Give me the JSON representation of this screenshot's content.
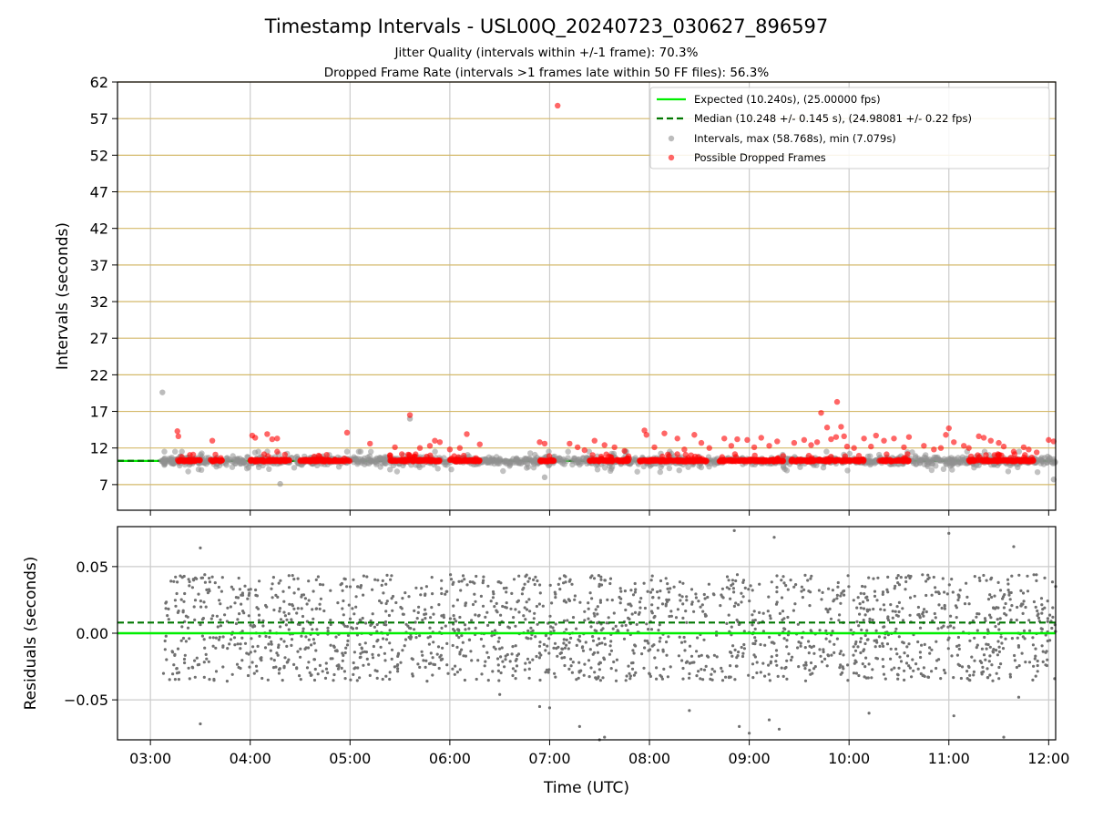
{
  "figure": {
    "title": "Timestamp Intervals - USL00Q_20240723_030627_896597",
    "subtitle_1": "Jitter Quality (intervals within +/-1 frame): 70.3%",
    "subtitle_2": "Dropped Frame Rate (intervals >1 frames late within 50 FF files): 56.3%"
  },
  "colors": {
    "expected": "#00ee00",
    "median": "#007700",
    "intervals": "#909090",
    "dropped": "#ff0000",
    "residuals": "#707070",
    "hgrid_top": "#d4b96a",
    "grid": "#cccccc"
  },
  "chart_data": [
    {
      "type": "scatter",
      "name": "intervals_panel",
      "ylabel": "Intervals (seconds)",
      "xlabel": "",
      "x_unit": "hours UTC",
      "xlim": [
        2.67,
        12.07
      ],
      "ylim": [
        3.5,
        62
      ],
      "yticks": [
        7,
        12,
        17,
        22,
        27,
        32,
        37,
        42,
        47,
        52,
        57,
        62
      ],
      "ytick_labels": [
        "7",
        "12",
        "17",
        "22",
        "27",
        "32",
        "37",
        "42",
        "47",
        "52",
        "57",
        "62"
      ],
      "xticks": [
        3,
        4,
        5,
        6,
        7,
        8,
        9,
        10,
        11,
        12
      ],
      "grid": "horizontal lines at y ticks, vertical lines at x ticks",
      "legend": {
        "placement": "top-right",
        "entries": [
          "Expected (10.240s), (25.00000 fps)",
          "Median (10.248 +/- 0.145 s), (24.98081 +/- 0.22 fps)",
          "Intervals, max (58.768s), min (7.079s)",
          "Possible Dropped Frames"
        ]
      },
      "expected_value": 10.24,
      "median_value": 10.248,
      "series": [
        {
          "name": "Intervals, max (58.768s), min (7.079s)",
          "description": "dense band of ~1900 intervals between about 7 and 12 s, centered on 10.24 s",
          "x_range": [
            3.1,
            12.07
          ],
          "typical_range": [
            8.0,
            11.5
          ],
          "outliers": [
            {
              "x": 3.12,
              "y": 19.6
            },
            {
              "x": 4.3,
              "y": 7.1
            },
            {
              "x": 5.6,
              "y": 16.0
            },
            {
              "x": 6.95,
              "y": 8.0
            },
            {
              "x": 12.05,
              "y": 7.7
            }
          ]
        },
        {
          "name": "Possible Dropped Frames",
          "description": "red points at ~10.28 s forming a near-continuous band, plus scattered values up to ~18 s and one at 58.77 s",
          "base_value": 10.28,
          "dense_ranges": [
            [
              3.27,
              3.5
            ],
            [
              3.6,
              3.72
            ],
            [
              4.0,
              4.4
            ],
            [
              4.5,
              5.0
            ],
            [
              5.4,
              5.9
            ],
            [
              6.0,
              6.3
            ],
            [
              6.9,
              7.05
            ],
            [
              7.4,
              7.8
            ],
            [
              7.9,
              8.6
            ],
            [
              8.7,
              9.35
            ],
            [
              9.42,
              10.15
            ],
            [
              10.3,
              10.6
            ],
            [
              11.2,
              11.85
            ]
          ],
          "high_points": [
            {
              "x": 3.27,
              "y": 14.3
            },
            {
              "x": 3.28,
              "y": 13.6
            },
            {
              "x": 3.62,
              "y": 13.0
            },
            {
              "x": 4.02,
              "y": 13.7
            },
            {
              "x": 4.05,
              "y": 13.4
            },
            {
              "x": 4.17,
              "y": 13.9
            },
            {
              "x": 4.22,
              "y": 13.2
            },
            {
              "x": 4.27,
              "y": 13.3
            },
            {
              "x": 4.27,
              "y": 11.5
            },
            {
              "x": 4.97,
              "y": 14.1
            },
            {
              "x": 5.2,
              "y": 12.6
            },
            {
              "x": 5.45,
              "y": 12.1
            },
            {
              "x": 5.6,
              "y": 16.5
            },
            {
              "x": 5.7,
              "y": 12.0
            },
            {
              "x": 5.8,
              "y": 12.3
            },
            {
              "x": 5.85,
              "y": 13.0
            },
            {
              "x": 5.9,
              "y": 12.8
            },
            {
              "x": 6.0,
              "y": 11.8
            },
            {
              "x": 6.1,
              "y": 12.0
            },
            {
              "x": 6.17,
              "y": 13.9
            },
            {
              "x": 6.3,
              "y": 12.5
            },
            {
              "x": 6.9,
              "y": 12.8
            },
            {
              "x": 6.95,
              "y": 12.6
            },
            {
              "x": 7.08,
              "y": 58.77
            },
            {
              "x": 7.2,
              "y": 12.6
            },
            {
              "x": 7.28,
              "y": 12.1
            },
            {
              "x": 7.35,
              "y": 11.7
            },
            {
              "x": 7.45,
              "y": 13.0
            },
            {
              "x": 7.55,
              "y": 12.4
            },
            {
              "x": 7.65,
              "y": 12.1
            },
            {
              "x": 7.75,
              "y": 11.6
            },
            {
              "x": 7.95,
              "y": 14.4
            },
            {
              "x": 7.97,
              "y": 13.8
            },
            {
              "x": 8.05,
              "y": 12.1
            },
            {
              "x": 8.15,
              "y": 14.0
            },
            {
              "x": 8.28,
              "y": 13.3
            },
            {
              "x": 8.35,
              "y": 11.8
            },
            {
              "x": 8.45,
              "y": 13.8
            },
            {
              "x": 8.52,
              "y": 12.7
            },
            {
              "x": 8.6,
              "y": 12.0
            },
            {
              "x": 8.75,
              "y": 13.3
            },
            {
              "x": 8.82,
              "y": 12.3
            },
            {
              "x": 8.88,
              "y": 13.2
            },
            {
              "x": 8.98,
              "y": 13.1
            },
            {
              "x": 9.05,
              "y": 12.1
            },
            {
              "x": 9.12,
              "y": 13.4
            },
            {
              "x": 9.2,
              "y": 12.3
            },
            {
              "x": 9.28,
              "y": 12.9
            },
            {
              "x": 9.45,
              "y": 12.7
            },
            {
              "x": 9.55,
              "y": 13.1
            },
            {
              "x": 9.62,
              "y": 12.4
            },
            {
              "x": 9.68,
              "y": 12.8
            },
            {
              "x": 9.72,
              "y": 16.8
            },
            {
              "x": 9.78,
              "y": 14.8
            },
            {
              "x": 9.82,
              "y": 13.2
            },
            {
              "x": 9.87,
              "y": 13.5
            },
            {
              "x": 9.88,
              "y": 18.3
            },
            {
              "x": 9.92,
              "y": 14.9
            },
            {
              "x": 9.95,
              "y": 13.6
            },
            {
              "x": 9.98,
              "y": 12.2
            },
            {
              "x": 10.05,
              "y": 12.0
            },
            {
              "x": 10.15,
              "y": 13.3
            },
            {
              "x": 10.22,
              "y": 12.2
            },
            {
              "x": 10.27,
              "y": 13.7
            },
            {
              "x": 10.35,
              "y": 13.0
            },
            {
              "x": 10.45,
              "y": 13.3
            },
            {
              "x": 10.55,
              "y": 12.1
            },
            {
              "x": 10.6,
              "y": 13.5
            },
            {
              "x": 10.75,
              "y": 12.3
            },
            {
              "x": 10.85,
              "y": 11.8
            },
            {
              "x": 10.92,
              "y": 12.0
            },
            {
              "x": 10.97,
              "y": 13.8
            },
            {
              "x": 11.0,
              "y": 14.7
            },
            {
              "x": 11.05,
              "y": 12.8
            },
            {
              "x": 11.15,
              "y": 12.3
            },
            {
              "x": 11.2,
              "y": 12.0
            },
            {
              "x": 11.3,
              "y": 13.6
            },
            {
              "x": 11.35,
              "y": 13.4
            },
            {
              "x": 11.42,
              "y": 13.0
            },
            {
              "x": 11.5,
              "y": 12.7
            },
            {
              "x": 11.55,
              "y": 12.2
            },
            {
              "x": 11.65,
              "y": 11.5
            },
            {
              "x": 11.75,
              "y": 12.1
            },
            {
              "x": 11.8,
              "y": 11.8
            },
            {
              "x": 11.88,
              "y": 11.4
            },
            {
              "x": 12.0,
              "y": 13.1
            },
            {
              "x": 12.05,
              "y": 12.9
            }
          ]
        }
      ]
    },
    {
      "type": "scatter",
      "name": "residuals_panel",
      "xlabel": "Time (UTC)",
      "ylabel": "Residuals (seconds)",
      "xlim": [
        2.67,
        12.07
      ],
      "ylim": [
        -0.08,
        0.08
      ],
      "yticks": [
        -0.05,
        0.0,
        0.05
      ],
      "ytick_labels": [
        "−0.05",
        "0.00",
        "0.05"
      ],
      "xticks": [
        3,
        4,
        5,
        6,
        7,
        8,
        9,
        10,
        11,
        12
      ],
      "xtick_labels": [
        "03:00",
        "04:00",
        "05:00",
        "06:00",
        "07:00",
        "08:00",
        "09:00",
        "10:00",
        "11:00",
        "12:00"
      ],
      "grid": "both",
      "expected_line": 0.0,
      "median_line": 0.008,
      "series": [
        {
          "name": "Residuals",
          "description": "~1900 residual points roughly uniform between -0.04 and 0.04 s with sparse outliers to +/-0.08 s",
          "x_range": [
            3.13,
            12.07
          ],
          "typical_range": [
            -0.04,
            0.045
          ],
          "outliers": [
            {
              "x": 3.5,
              "y": 0.064
            },
            {
              "x": 3.5,
              "y": -0.068
            },
            {
              "x": 6.5,
              "y": -0.046
            },
            {
              "x": 6.9,
              "y": -0.055
            },
            {
              "x": 7.0,
              "y": -0.056
            },
            {
              "x": 7.3,
              "y": -0.07
            },
            {
              "x": 7.5,
              "y": -0.08
            },
            {
              "x": 7.55,
              "y": -0.078
            },
            {
              "x": 8.4,
              "y": -0.058
            },
            {
              "x": 8.85,
              "y": 0.077
            },
            {
              "x": 8.9,
              "y": -0.07
            },
            {
              "x": 9.0,
              "y": -0.075
            },
            {
              "x": 9.2,
              "y": -0.065
            },
            {
              "x": 9.25,
              "y": 0.072
            },
            {
              "x": 9.3,
              "y": -0.072
            },
            {
              "x": 10.2,
              "y": -0.06
            },
            {
              "x": 11.0,
              "y": 0.075
            },
            {
              "x": 11.05,
              "y": -0.062
            },
            {
              "x": 11.55,
              "y": -0.078
            },
            {
              "x": 11.65,
              "y": 0.065
            },
            {
              "x": 11.7,
              "y": -0.048
            }
          ]
        }
      ]
    }
  ]
}
